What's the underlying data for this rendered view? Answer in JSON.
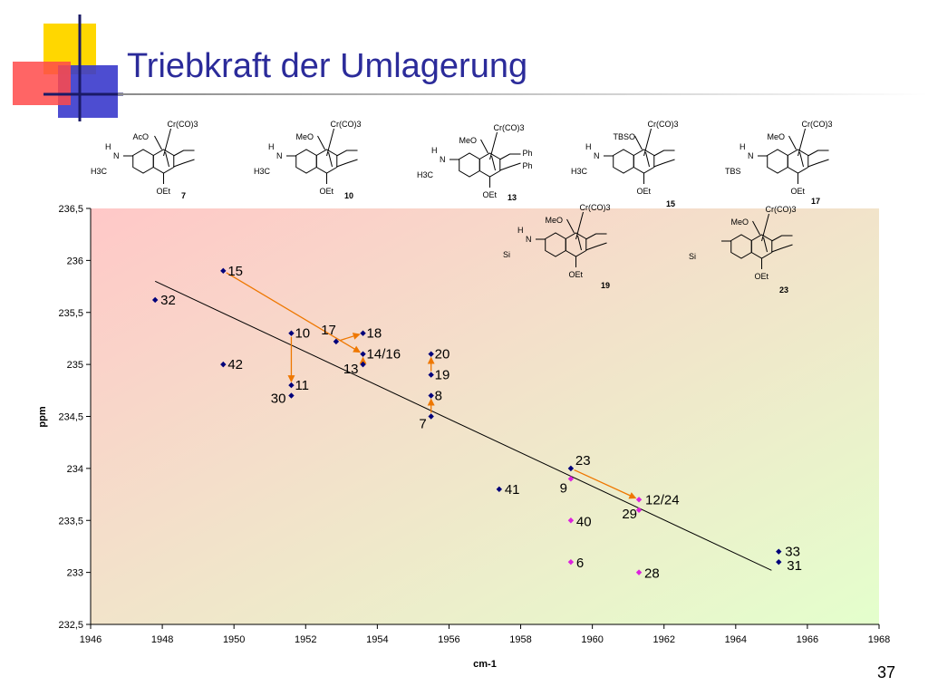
{
  "slide": {
    "title": "Triebkraft der Umlagerung",
    "number": "37",
    "colors": {
      "title": "#2b2b9a",
      "deco_blue": "#3a3acc",
      "deco_yellow": "#ffd700",
      "deco_red": "#ff4a4a"
    }
  },
  "structures": [
    {
      "compound": "7",
      "top_label": "AcO",
      "complex_label": "Cr(CO)3",
      "amine_label": "H3C",
      "h_label": "H",
      "n_label": "N",
      "oet_label": "OEt",
      "extra1": "",
      "extra2": ""
    },
    {
      "compound": "10",
      "top_label": "MeO",
      "complex_label": "Cr(CO)3",
      "amine_label": "H3C",
      "h_label": "H",
      "n_label": "N",
      "oet_label": "OEt",
      "extra1": "",
      "extra2": ""
    },
    {
      "compound": "13",
      "top_label": "MeO",
      "complex_label": "Cr(CO)3",
      "amine_label": "H3C",
      "h_label": "H",
      "n_label": "N",
      "oet_label": "OEt",
      "extra1": "Ph",
      "extra2": "Ph"
    },
    {
      "compound": "15",
      "top_label": "TBSO",
      "complex_label": "Cr(CO)3",
      "amine_label": "H3C",
      "h_label": "H",
      "n_label": "N",
      "oet_label": "OEt",
      "extra1": "",
      "extra2": ""
    },
    {
      "compound": "17",
      "top_label": "MeO",
      "complex_label": "Cr(CO)3",
      "amine_label": "TBS",
      "h_label": "H",
      "n_label": "N",
      "oet_label": "OEt",
      "extra1": "",
      "extra2": ""
    },
    {
      "compound": "19",
      "top_label": "MeO",
      "complex_label": "Cr(CO)3",
      "amine_label": "Si",
      "h_label": "H",
      "n_label": "N",
      "oet_label": "OEt",
      "extra1": "",
      "extra2": ""
    },
    {
      "compound": "23",
      "top_label": "MeO",
      "complex_label": "Cr(CO)3",
      "amine_label": "Si",
      "h_label": "",
      "n_label": "",
      "oet_label": "OEt",
      "extra1": "",
      "extra2": ""
    }
  ],
  "chart_data": {
    "type": "scatter",
    "title": "",
    "xlabel": "cm-1",
    "ylabel": "ppm",
    "xlim": [
      1946,
      1968
    ],
    "ylim": [
      232.5,
      236.5
    ],
    "x_ticks": [
      "1946",
      "1948",
      "1950",
      "1952",
      "1954",
      "1956",
      "1958",
      "1960",
      "1962",
      "1964",
      "1966",
      "1968"
    ],
    "y_ticks": [
      "232,5",
      "233",
      "233,5",
      "234",
      "234,5",
      "235",
      "235,5",
      "236",
      "236,5"
    ],
    "grid": false,
    "legend": "none",
    "background_gradient": [
      "#ffc8c8",
      "#e4ffcc"
    ],
    "series": [
      {
        "color": "#00007a",
        "points": [
          {
            "label": "32",
            "x": 1947.8,
            "y": 235.62
          },
          {
            "label": "15",
            "x": 1949.7,
            "y": 235.9
          },
          {
            "label": "42",
            "x": 1949.7,
            "y": 235.0
          },
          {
            "label": "10",
            "x": 1951.6,
            "y": 235.3
          },
          {
            "label": "11",
            "x": 1951.6,
            "y": 234.8
          },
          {
            "label": "30",
            "x": 1951.6,
            "y": 234.7
          },
          {
            "label": "18",
            "x": 1953.6,
            "y": 235.3
          },
          {
            "label": "14/16",
            "x": 1953.6,
            "y": 235.1
          },
          {
            "label": "13",
            "x": 1953.6,
            "y": 235.0
          },
          {
            "label": "20",
            "x": 1955.5,
            "y": 235.1
          },
          {
            "label": "19",
            "x": 1955.5,
            "y": 234.9
          },
          {
            "label": "8",
            "x": 1955.5,
            "y": 234.7
          },
          {
            "label": "7",
            "x": 1955.5,
            "y": 234.5
          },
          {
            "label": "41",
            "x": 1957.4,
            "y": 233.8
          },
          {
            "label": "23",
            "x": 1959.4,
            "y": 234.0
          },
          {
            "label": "33",
            "x": 1965.2,
            "y": 233.2
          },
          {
            "label": "31",
            "x": 1965.2,
            "y": 233.1
          },
          {
            "label": "17",
            "x": 1952.85,
            "y": 235.22
          }
        ]
      },
      {
        "color": "#dd22dd",
        "points": [
          {
            "label": "9",
            "x": 1959.4,
            "y": 233.9
          },
          {
            "label": "40",
            "x": 1959.4,
            "y": 233.5
          },
          {
            "label": "6",
            "x": 1959.4,
            "y": 233.1
          },
          {
            "label": "12/24",
            "x": 1961.3,
            "y": 233.7
          },
          {
            "label": "29",
            "x": 1961.3,
            "y": 233.6
          },
          {
            "label": "28",
            "x": 1961.3,
            "y": 233.0
          }
        ]
      }
    ],
    "trendline": {
      "x1": 1947.8,
      "y1": 235.8,
      "x2": 1965.0,
      "y2": 233.02,
      "color": "#000000"
    },
    "arrows": {
      "color": "#ee7700",
      "items": [
        {
          "from": [
            1949.7,
            235.9
          ],
          "to": [
            1953.6,
            235.1
          ]
        },
        {
          "from": [
            1951.6,
            235.3
          ],
          "to": [
            1951.6,
            234.8
          ]
        },
        {
          "from": [
            1952.85,
            235.22
          ],
          "to": [
            1953.6,
            235.3
          ]
        },
        {
          "from": [
            1953.6,
            235.0
          ],
          "to": [
            1953.6,
            235.1
          ]
        },
        {
          "from": [
            1955.5,
            234.5
          ],
          "to": [
            1955.5,
            234.7
          ]
        },
        {
          "from": [
            1955.5,
            234.9
          ],
          "to": [
            1955.5,
            235.1
          ]
        },
        {
          "from": [
            1959.4,
            234.0
          ],
          "to": [
            1961.3,
            233.7
          ]
        }
      ]
    }
  }
}
